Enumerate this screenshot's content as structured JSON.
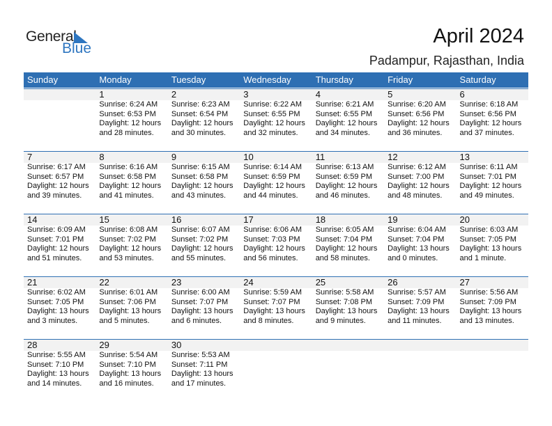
{
  "logo": {
    "text_general": "General",
    "text_blue": "Blue",
    "accent": "#2e76c0"
  },
  "title": "April 2024",
  "location": "Padampur, Rajasthan, India",
  "colors": {
    "header_bg": "#2e6fb3",
    "date_band": "#f2f2f2"
  },
  "weekdays": [
    "Sunday",
    "Monday",
    "Tuesday",
    "Wednesday",
    "Thursday",
    "Friday",
    "Saturday"
  ],
  "weeks": [
    [
      null,
      {
        "day": "1",
        "sunrise": "Sunrise: 6:24 AM",
        "sunset": "Sunset: 6:53 PM",
        "daylight": "Daylight: 12 hours",
        "minutes": "and 28 minutes."
      },
      {
        "day": "2",
        "sunrise": "Sunrise: 6:23 AM",
        "sunset": "Sunset: 6:54 PM",
        "daylight": "Daylight: 12 hours",
        "minutes": "and 30 minutes."
      },
      {
        "day": "3",
        "sunrise": "Sunrise: 6:22 AM",
        "sunset": "Sunset: 6:55 PM",
        "daylight": "Daylight: 12 hours",
        "minutes": "and 32 minutes."
      },
      {
        "day": "4",
        "sunrise": "Sunrise: 6:21 AM",
        "sunset": "Sunset: 6:55 PM",
        "daylight": "Daylight: 12 hours",
        "minutes": "and 34 minutes."
      },
      {
        "day": "5",
        "sunrise": "Sunrise: 6:20 AM",
        "sunset": "Sunset: 6:56 PM",
        "daylight": "Daylight: 12 hours",
        "minutes": "and 36 minutes."
      },
      {
        "day": "6",
        "sunrise": "Sunrise: 6:18 AM",
        "sunset": "Sunset: 6:56 PM",
        "daylight": "Daylight: 12 hours",
        "minutes": "and 37 minutes."
      }
    ],
    [
      {
        "day": "7",
        "sunrise": "Sunrise: 6:17 AM",
        "sunset": "Sunset: 6:57 PM",
        "daylight": "Daylight: 12 hours",
        "minutes": "and 39 minutes."
      },
      {
        "day": "8",
        "sunrise": "Sunrise: 6:16 AM",
        "sunset": "Sunset: 6:58 PM",
        "daylight": "Daylight: 12 hours",
        "minutes": "and 41 minutes."
      },
      {
        "day": "9",
        "sunrise": "Sunrise: 6:15 AM",
        "sunset": "Sunset: 6:58 PM",
        "daylight": "Daylight: 12 hours",
        "minutes": "and 43 minutes."
      },
      {
        "day": "10",
        "sunrise": "Sunrise: 6:14 AM",
        "sunset": "Sunset: 6:59 PM",
        "daylight": "Daylight: 12 hours",
        "minutes": "and 44 minutes."
      },
      {
        "day": "11",
        "sunrise": "Sunrise: 6:13 AM",
        "sunset": "Sunset: 6:59 PM",
        "daylight": "Daylight: 12 hours",
        "minutes": "and 46 minutes."
      },
      {
        "day": "12",
        "sunrise": "Sunrise: 6:12 AM",
        "sunset": "Sunset: 7:00 PM",
        "daylight": "Daylight: 12 hours",
        "minutes": "and 48 minutes."
      },
      {
        "day": "13",
        "sunrise": "Sunrise: 6:11 AM",
        "sunset": "Sunset: 7:01 PM",
        "daylight": "Daylight: 12 hours",
        "minutes": "and 49 minutes."
      }
    ],
    [
      {
        "day": "14",
        "sunrise": "Sunrise: 6:09 AM",
        "sunset": "Sunset: 7:01 PM",
        "daylight": "Daylight: 12 hours",
        "minutes": "and 51 minutes."
      },
      {
        "day": "15",
        "sunrise": "Sunrise: 6:08 AM",
        "sunset": "Sunset: 7:02 PM",
        "daylight": "Daylight: 12 hours",
        "minutes": "and 53 minutes."
      },
      {
        "day": "16",
        "sunrise": "Sunrise: 6:07 AM",
        "sunset": "Sunset: 7:02 PM",
        "daylight": "Daylight: 12 hours",
        "minutes": "and 55 minutes."
      },
      {
        "day": "17",
        "sunrise": "Sunrise: 6:06 AM",
        "sunset": "Sunset: 7:03 PM",
        "daylight": "Daylight: 12 hours",
        "minutes": "and 56 minutes."
      },
      {
        "day": "18",
        "sunrise": "Sunrise: 6:05 AM",
        "sunset": "Sunset: 7:04 PM",
        "daylight": "Daylight: 12 hours",
        "minutes": "and 58 minutes."
      },
      {
        "day": "19",
        "sunrise": "Sunrise: 6:04 AM",
        "sunset": "Sunset: 7:04 PM",
        "daylight": "Daylight: 13 hours",
        "minutes": "and 0 minutes."
      },
      {
        "day": "20",
        "sunrise": "Sunrise: 6:03 AM",
        "sunset": "Sunset: 7:05 PM",
        "daylight": "Daylight: 13 hours",
        "minutes": "and 1 minute."
      }
    ],
    [
      {
        "day": "21",
        "sunrise": "Sunrise: 6:02 AM",
        "sunset": "Sunset: 7:05 PM",
        "daylight": "Daylight: 13 hours",
        "minutes": "and 3 minutes."
      },
      {
        "day": "22",
        "sunrise": "Sunrise: 6:01 AM",
        "sunset": "Sunset: 7:06 PM",
        "daylight": "Daylight: 13 hours",
        "minutes": "and 5 minutes."
      },
      {
        "day": "23",
        "sunrise": "Sunrise: 6:00 AM",
        "sunset": "Sunset: 7:07 PM",
        "daylight": "Daylight: 13 hours",
        "minutes": "and 6 minutes."
      },
      {
        "day": "24",
        "sunrise": "Sunrise: 5:59 AM",
        "sunset": "Sunset: 7:07 PM",
        "daylight": "Daylight: 13 hours",
        "minutes": "and 8 minutes."
      },
      {
        "day": "25",
        "sunrise": "Sunrise: 5:58 AM",
        "sunset": "Sunset: 7:08 PM",
        "daylight": "Daylight: 13 hours",
        "minutes": "and 9 minutes."
      },
      {
        "day": "26",
        "sunrise": "Sunrise: 5:57 AM",
        "sunset": "Sunset: 7:09 PM",
        "daylight": "Daylight: 13 hours",
        "minutes": "and 11 minutes."
      },
      {
        "day": "27",
        "sunrise": "Sunrise: 5:56 AM",
        "sunset": "Sunset: 7:09 PM",
        "daylight": "Daylight: 13 hours",
        "minutes": "and 13 minutes."
      }
    ],
    [
      {
        "day": "28",
        "sunrise": "Sunrise: 5:55 AM",
        "sunset": "Sunset: 7:10 PM",
        "daylight": "Daylight: 13 hours",
        "minutes": "and 14 minutes."
      },
      {
        "day": "29",
        "sunrise": "Sunrise: 5:54 AM",
        "sunset": "Sunset: 7:10 PM",
        "daylight": "Daylight: 13 hours",
        "minutes": "and 16 minutes."
      },
      {
        "day": "30",
        "sunrise": "Sunrise: 5:53 AM",
        "sunset": "Sunset: 7:11 PM",
        "daylight": "Daylight: 13 hours",
        "minutes": "and 17 minutes."
      },
      null,
      null,
      null,
      null
    ]
  ]
}
